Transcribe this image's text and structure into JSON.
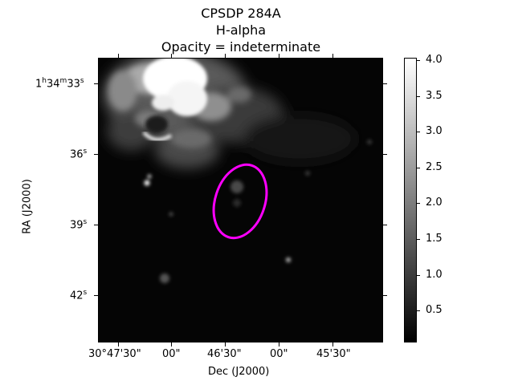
{
  "title": {
    "object": "CPSDP 284A",
    "band": "H-alpha",
    "opacity": "Opacity = indeterminate"
  },
  "axes": {
    "xlabel": "Dec (J2000)",
    "ylabel": "RA (J2000)",
    "x_ticks": [
      "30°47'30\"",
      "00\"",
      "46'30\"",
      "00\"",
      "45'30\""
    ],
    "y_ticks": [
      "1h34m33s",
      "36s",
      "39s",
      "42s"
    ]
  },
  "colorbar": {
    "ticks": [
      "4.0",
      "3.5",
      "3.0",
      "2.5",
      "2.0",
      "1.5",
      "1.0",
      "0.5"
    ],
    "range": [
      0,
      4.05
    ],
    "colormap": "grayscale"
  },
  "marker": {
    "shape": "ellipse",
    "color": "#ff00ff"
  }
}
